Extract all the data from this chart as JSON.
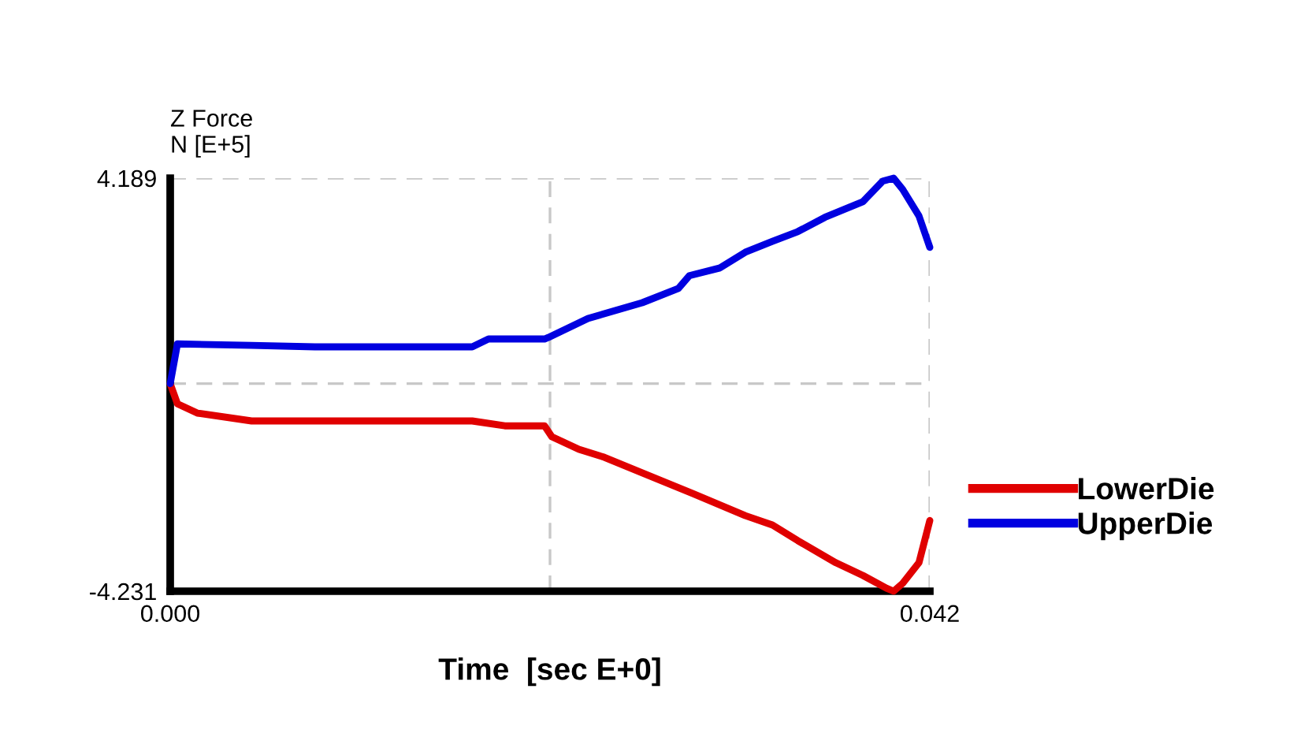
{
  "chart_data": {
    "type": "line",
    "xlabel": "Time  [sec E+0]",
    "ylabel": "Z Force\nN [E+5]",
    "xlim": [
      0,
      0.042
    ],
    "ylim": [
      -4.231,
      4.189
    ],
    "xticks": [
      {
        "value": 0,
        "label": "0.000"
      },
      {
        "value": 0.021,
        "label": null
      },
      {
        "value": 0.042,
        "label": "0.042"
      }
    ],
    "yticks": [
      {
        "value": -4.231,
        "label": "-4.231"
      },
      {
        "value": 0,
        "label": null
      },
      {
        "value": 4.189,
        "label": "4.189"
      }
    ],
    "grid": true,
    "legend": "right",
    "marker": "none",
    "line_style": "solid",
    "series": [
      {
        "name": "LowerDie",
        "color": "#e00000",
        "x": [
          0,
          0.0004,
          0.0015,
          0.0045,
          0.008,
          0.0167,
          0.0185,
          0.0207,
          0.0211,
          0.0226,
          0.024,
          0.0261,
          0.0289,
          0.0318,
          0.0333,
          0.0347,
          0.0368,
          0.0383,
          0.0396,
          0.04,
          0.0405,
          0.0414,
          0.042
        ],
        "values": [
          0,
          -0.41,
          -0.6,
          -0.76,
          -0.76,
          -0.76,
          -0.86,
          -0.86,
          -1.08,
          -1.34,
          -1.5,
          -1.82,
          -2.24,
          -2.69,
          -2.88,
          -3.2,
          -3.65,
          -3.91,
          -4.17,
          -4.231,
          -4.07,
          -3.65,
          -2.79
        ]
      },
      {
        "name": "UpperDie",
        "color": "#0000e0",
        "x": [
          0,
          0.0004,
          0.0045,
          0.008,
          0.0167,
          0.0176,
          0.0207,
          0.0209,
          0.0231,
          0.0261,
          0.0281,
          0.0287,
          0.0304,
          0.0318,
          0.0333,
          0.0347,
          0.0362,
          0.0383,
          0.0394,
          0.04,
          0.0405,
          0.0414,
          0.042
        ],
        "values": [
          0,
          0.81,
          0.78,
          0.75,
          0.75,
          0.91,
          0.91,
          0.94,
          1.33,
          1.65,
          1.94,
          2.2,
          2.36,
          2.68,
          2.9,
          3.1,
          3.39,
          3.71,
          4.13,
          4.189,
          3.96,
          3.42,
          2.78
        ]
      }
    ]
  }
}
